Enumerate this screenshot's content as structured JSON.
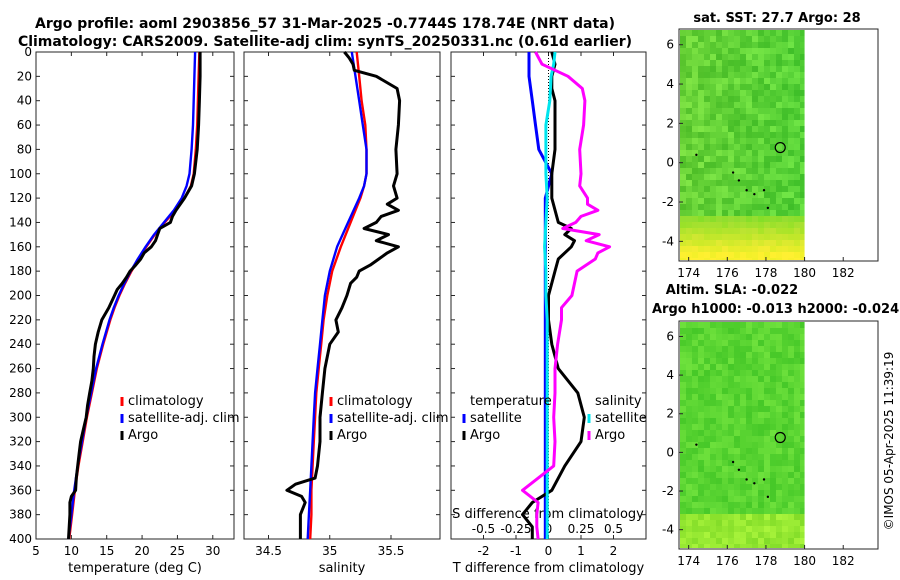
{
  "header": {
    "line1": "Argo profile: aoml 2903856_57 31-Mar-2025 -0.7744S 178.74E (NRT data)",
    "line2": "Climatology: CARS2009. Satellite-adj clim: synTS_20250331.nc (0.61d earlier)"
  },
  "colors": {
    "climatology": "#ff0000",
    "satellite": "#0000ff",
    "argo": "#000000",
    "t_sat": "#0000ff",
    "s_sat": "#00e5ee",
    "s_argo": "#ff00ff",
    "sst_bg": "#33cc33"
  },
  "chart_data": [
    {
      "id": "temperature",
      "type": "line",
      "xlabel": "temperature (deg C)",
      "xlim": [
        5,
        33
      ],
      "xticks": [
        5,
        10,
        15,
        20,
        25,
        30
      ],
      "ylim": [
        0,
        400
      ],
      "yticks": [
        0,
        20,
        40,
        60,
        80,
        100,
        120,
        140,
        160,
        180,
        200,
        220,
        240,
        260,
        280,
        300,
        320,
        340,
        360,
        380,
        400
      ],
      "legend": [
        "climatology",
        "satellite-adj. clim",
        "Argo"
      ],
      "series": [
        {
          "name": "climatology",
          "depth": [
            0,
            20,
            40,
            60,
            80,
            100,
            110,
            120,
            130,
            140,
            150,
            160,
            170,
            180,
            190,
            200,
            210,
            220,
            240,
            260,
            280,
            300,
            320,
            340,
            360,
            380,
            400
          ],
          "values": [
            28.1,
            28.0,
            27.9,
            27.8,
            27.6,
            27.3,
            26.9,
            26.0,
            24.7,
            23.2,
            21.8,
            20.6,
            19.5,
            18.5,
            17.6,
            16.8,
            16.1,
            15.5,
            14.5,
            13.6,
            12.9,
            12.2,
            11.6,
            11.0,
            10.5,
            10.1,
            9.7
          ]
        },
        {
          "name": "satellite-adj. clim",
          "depth": [
            0,
            20,
            40,
            60,
            80,
            100,
            110,
            120,
            130,
            140,
            150,
            160,
            170,
            180,
            190,
            200,
            210,
            220,
            240,
            260,
            280,
            300,
            320,
            340,
            360,
            380,
            400
          ],
          "values": [
            27.5,
            27.4,
            27.3,
            27.2,
            27.0,
            26.7,
            26.3,
            25.6,
            24.5,
            23.1,
            21.7,
            20.5,
            19.4,
            18.4,
            17.5,
            16.7,
            16.0,
            15.4,
            14.4,
            13.5,
            12.8,
            12.1,
            11.5,
            10.9,
            10.4,
            10.0,
            9.6
          ]
        },
        {
          "name": "Argo",
          "depth": [
            0,
            20,
            40,
            60,
            80,
            100,
            110,
            120,
            130,
            135,
            140,
            145,
            150,
            155,
            160,
            165,
            170,
            175,
            180,
            185,
            190,
            195,
            200,
            210,
            220,
            230,
            240,
            250,
            260,
            270,
            280,
            290,
            300,
            310,
            320,
            330,
            340,
            350,
            360,
            365,
            370,
            380,
            390,
            400
          ],
          "values": [
            28.2,
            28.2,
            28.1,
            28.0,
            27.8,
            27.4,
            27.0,
            26.0,
            24.8,
            24.3,
            24.0,
            22.5,
            22.2,
            21.9,
            21.3,
            20.3,
            19.8,
            19.1,
            18.3,
            17.8,
            17.2,
            16.5,
            16.1,
            15.3,
            14.3,
            13.8,
            13.4,
            13.2,
            13.1,
            12.9,
            12.6,
            12.3,
            12.1,
            11.7,
            11.3,
            11.1,
            10.9,
            10.7,
            10.6,
            10.0,
            9.8,
            9.8,
            9.7,
            9.6
          ]
        }
      ]
    },
    {
      "id": "salinity",
      "type": "line",
      "xlabel": "salinity",
      "xlim": [
        34.3,
        35.9
      ],
      "xticks": [
        34.5,
        35,
        35.5
      ],
      "xticklabels": [
        "34.5",
        "35",
        "35.5"
      ],
      "ylim": [
        0,
        400
      ],
      "legend": [
        "climatology",
        "satellite-adj. clim",
        "Argo"
      ],
      "series": [
        {
          "name": "climatology",
          "depth": [
            0,
            20,
            40,
            60,
            80,
            100,
            110,
            120,
            140,
            160,
            180,
            200,
            220,
            240,
            260,
            280,
            300,
            320,
            340,
            360,
            380,
            400
          ],
          "values": [
            35.22,
            35.24,
            35.26,
            35.29,
            35.3,
            35.3,
            35.28,
            35.25,
            35.17,
            35.09,
            35.02,
            34.98,
            34.95,
            34.93,
            34.91,
            34.89,
            34.88,
            34.87,
            34.86,
            34.85,
            34.85,
            34.84
          ]
        },
        {
          "name": "satellite-adj. clim",
          "depth": [
            0,
            20,
            40,
            60,
            80,
            100,
            110,
            120,
            140,
            160,
            180,
            200,
            220,
            240,
            260,
            280,
            300,
            320,
            340,
            360,
            380,
            400
          ],
          "values": [
            35.18,
            35.21,
            35.24,
            35.27,
            35.3,
            35.3,
            35.28,
            35.24,
            35.15,
            35.06,
            35.0,
            34.96,
            34.94,
            34.92,
            34.9,
            34.88,
            34.87,
            34.86,
            34.85,
            34.84,
            34.83,
            34.82
          ]
        },
        {
          "name": "Argo",
          "depth": [
            0,
            5,
            10,
            15,
            20,
            30,
            40,
            60,
            80,
            100,
            110,
            120,
            125,
            130,
            135,
            140,
            145,
            150,
            155,
            160,
            165,
            170,
            175,
            180,
            185,
            190,
            200,
            210,
            220,
            230,
            240,
            260,
            280,
            300,
            320,
            340,
            350,
            355,
            360,
            365,
            370,
            380,
            390,
            400
          ],
          "values": [
            35.12,
            35.16,
            35.19,
            35.2,
            35.38,
            35.55,
            35.57,
            35.56,
            35.54,
            35.55,
            35.52,
            35.55,
            35.47,
            35.56,
            35.42,
            35.38,
            35.28,
            35.48,
            35.38,
            35.56,
            35.47,
            35.4,
            35.33,
            35.24,
            35.22,
            35.17,
            35.14,
            35.1,
            35.05,
            35.07,
            35.0,
            34.96,
            34.94,
            34.92,
            34.92,
            34.9,
            34.88,
            34.72,
            34.65,
            34.77,
            34.8,
            34.76,
            34.76,
            34.76
          ]
        }
      ]
    },
    {
      "id": "differences",
      "type": "line",
      "xlabel": "T difference from climatology",
      "xlim": [
        -3,
        3
      ],
      "xticks": [
        -2,
        -1,
        0,
        1,
        2
      ],
      "top_axis_title": "S difference from climatology",
      "s_xticks": [
        -0.5,
        -0.25,
        0,
        0.25,
        0.5
      ],
      "s_xticklabels": [
        "-0.5",
        "-0.25",
        "0",
        "0.25",
        "0.5"
      ],
      "s_xlim": [
        -0.75,
        0.75
      ],
      "ylim": [
        0,
        400
      ],
      "legend_t_title": "temperature",
      "legend_s_title": "salinity",
      "legend": [
        "satellite",
        "Argo",
        "satellite",
        "Argo"
      ],
      "series": [
        {
          "name": "T satellite",
          "axis": "T",
          "depth": [
            0,
            20,
            40,
            60,
            80,
            100,
            120,
            140,
            160,
            180,
            200,
            240,
            280,
            320,
            360,
            380,
            400
          ],
          "values": [
            -0.6,
            -0.6,
            -0.5,
            -0.4,
            -0.3,
            0.1,
            -0.1,
            -0.1,
            -0.1,
            -0.1,
            -0.1,
            -0.1,
            -0.1,
            -0.1,
            -0.1,
            -0.1,
            -0.1
          ]
        },
        {
          "name": "T Argo",
          "axis": "T",
          "depth": [
            0,
            10,
            20,
            30,
            40,
            60,
            80,
            100,
            120,
            140,
            145,
            150,
            155,
            160,
            170,
            180,
            200,
            220,
            240,
            260,
            280,
            300,
            320,
            340,
            360,
            370,
            380,
            390,
            400
          ],
          "values": [
            0.1,
            0.2,
            0.1,
            0.1,
            0.2,
            0.2,
            0.2,
            0.1,
            0.1,
            0.3,
            0.7,
            0.5,
            0.8,
            0.7,
            0.3,
            0.2,
            0.0,
            0.0,
            0.1,
            0.3,
            0.9,
            1.1,
            1.0,
            0.5,
            0.1,
            -0.5,
            -0.8,
            -0.5,
            -0.5
          ]
        },
        {
          "name": "S satellite",
          "axis": "S",
          "depth": [
            0,
            10,
            20,
            40,
            60,
            80,
            100,
            120,
            140,
            160,
            180,
            200,
            220,
            240,
            260,
            280,
            300,
            320,
            340,
            360,
            380,
            400
          ],
          "values": [
            0.05,
            0.04,
            0.02,
            0.01,
            -0.02,
            -0.02,
            -0.02,
            -0.01,
            -0.02,
            -0.03,
            -0.02,
            -0.02,
            -0.01,
            -0.01,
            -0.01,
            -0.01,
            -0.01,
            -0.01,
            -0.01,
            -0.01,
            -0.01,
            -0.01
          ]
        },
        {
          "name": "S Argo",
          "axis": "S",
          "depth": [
            0,
            10,
            20,
            30,
            40,
            60,
            80,
            100,
            110,
            120,
            125,
            130,
            135,
            140,
            145,
            150,
            155,
            160,
            165,
            170,
            180,
            190,
            200,
            210,
            220,
            240,
            260,
            280,
            300,
            320,
            340,
            360,
            370,
            380,
            390,
            400
          ],
          "values": [
            -0.1,
            -0.05,
            0.15,
            0.26,
            0.28,
            0.27,
            0.24,
            0.25,
            0.24,
            0.3,
            0.3,
            0.38,
            0.25,
            0.21,
            0.11,
            0.39,
            0.29,
            0.47,
            0.38,
            0.36,
            0.22,
            0.2,
            0.18,
            0.1,
            0.1,
            0.07,
            0.05,
            0.05,
            0.04,
            0.05,
            0.04,
            -0.2,
            -0.08,
            -0.09,
            -0.09,
            -0.08
          ]
        }
      ]
    },
    {
      "id": "sst_map",
      "type": "heatmap",
      "title": "sat. SST: 27.7 Argo: 28",
      "xticks": [
        174,
        176,
        178,
        180,
        182
      ],
      "yticks": [
        6,
        4,
        2,
        0,
        -2,
        -4
      ],
      "xlim": [
        173.5,
        183.8
      ],
      "ylim": [
        -5,
        6.8
      ],
      "data_xlim": [
        173.5,
        180
      ],
      "argo_position": [
        178.74,
        0.77
      ]
    },
    {
      "id": "sla_map",
      "type": "heatmap",
      "title": "Altim. SLA: -0.022",
      "subtitle": "Argo h1000: -0.013 h2000: -0.024",
      "xticks": [
        174,
        176,
        178,
        180,
        182
      ],
      "yticks": [
        6,
        4,
        2,
        0,
        -2,
        -4
      ],
      "xlim": [
        173.5,
        183.8
      ],
      "ylim": [
        -5,
        6.8
      ],
      "data_xlim": [
        173.5,
        180
      ],
      "argo_position": [
        178.74,
        0.77
      ]
    }
  ],
  "footer": {
    "stamp": "©IMOS 05-Apr-2025 11:39:19"
  }
}
